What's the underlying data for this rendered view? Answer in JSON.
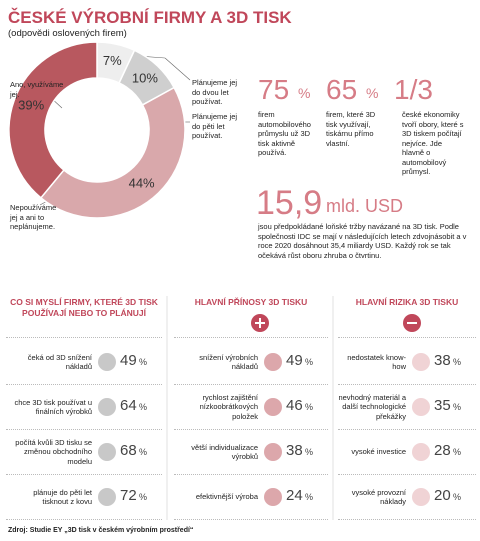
{
  "header": {
    "title": "ČESKÉ VÝROBNÍ FIRMY A 3D TISK",
    "subtitle": "(odpovědi oslovených firem)"
  },
  "chart_data": {
    "type": "pie",
    "categories": [
      "Plánujeme jej do dvou let používat.",
      "Plánujeme jej do pěti let používat.",
      "Nepoužíváme jej a ani to neplánujeme.",
      "Ano, využíváme jej."
    ],
    "values": [
      7,
      10,
      44,
      39
    ],
    "value_labels": [
      "7%",
      "10%",
      "44%",
      "39%"
    ],
    "colors": [
      "#eeeeee",
      "#cfcfcf",
      "#d9a8ab",
      "#b8585f"
    ],
    "donut": true
  },
  "stats": [
    {
      "value": "75",
      "unit": "%",
      "text": "firem automobilového průmyslu už 3D tisk aktivně používá."
    },
    {
      "value": "65",
      "unit": "%",
      "text": "firem, které 3D tisk využívají, tiskárnu přímo vlastní."
    },
    {
      "value": "1/3",
      "text": "české ekonomiky tvoří obory, které s 3D tiskem počítají nejvíce. Jde hlavně o automobilový průmysl."
    }
  ],
  "big_stat": {
    "value": "15,9",
    "unit": "mld. USD",
    "text": "jsou předpokládané loňské tržby navázané na 3D tisk. Podle společnosti IDC se mají v následujících letech zdvojnásobit a v roce 2020 dosáhnout 35,4 miliardy USD. Každý rok se tak očekává růst oboru zhruba o čtvrtinu."
  },
  "columns": [
    {
      "title": "CO SI MYSLÍ FIRMY, KTERÉ 3D TISK POUŽÍVAJÍ NEBO TO PLÁNUJÍ",
      "color": "#c8c8c8",
      "rows": [
        [
          "čeká od 3D snížení nákladů",
          "49",
          "%"
        ],
        [
          "chce 3D tisk používat u finálních výrobků",
          "64",
          "%"
        ],
        [
          "počítá kvůli 3D tisku se změnou obchodního modelu",
          "68",
          "%"
        ],
        [
          "plánuje do pěti let tisknout z kovu",
          "72",
          "%"
        ]
      ]
    },
    {
      "title": "HLAVNÍ PŘÍNOSY 3D TISKU",
      "color": "#dca7ab",
      "rows": [
        [
          "snížení výrobních nákladů",
          "49",
          "%"
        ],
        [
          "rychlost zajištění nízkoobrátkových položek",
          "46",
          "%"
        ],
        [
          "větší individualizace výrobků",
          "38",
          "%"
        ],
        [
          "efektivnější výroba",
          "24",
          "%"
        ]
      ]
    },
    {
      "title": "HLAVNÍ RIZIKA 3D TISKU",
      "color": "#f0d3d5",
      "rows": [
        [
          "nedostatek know-how",
          "38",
          "%"
        ],
        [
          "nevhodný materiál a další technologické překážky",
          "35",
          "%"
        ],
        [
          "vysoké investice",
          "28",
          "%"
        ],
        [
          "vysoké provozní náklady",
          "20",
          "%"
        ]
      ]
    }
  ],
  "source": "Zdroj: Studie EY „3D tisk v českém výrobním prostředí“"
}
